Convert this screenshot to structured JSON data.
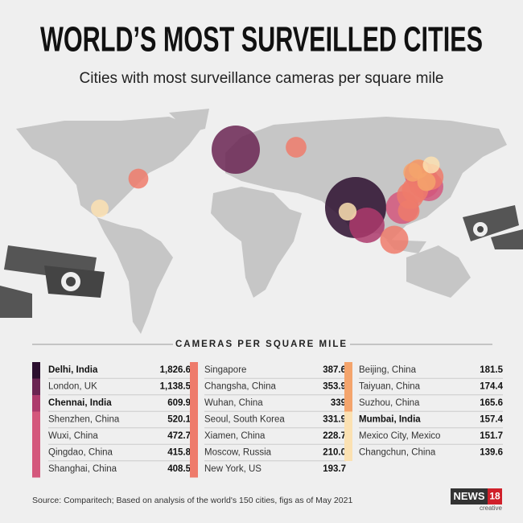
{
  "header": {
    "title": "WORLD’S MOST SURVEILLED CITIES",
    "subtitle": "Cities with most surveillance cameras per square mile"
  },
  "table": {
    "title": "CAMERAS PER SQUARE MILE",
    "columns": [
      {
        "rows": [
          {
            "city": "Delhi, India",
            "value": 1826.6,
            "label": "1,826.6",
            "color": "#2b0e2e",
            "bold": true
          },
          {
            "city": "London, UK",
            "value": 1138.5,
            "label": "1,138.5",
            "color": "#6a2452",
            "bold": false
          },
          {
            "city": "Chennai, India",
            "value": 609.9,
            "color": "#ad3a6c",
            "bold": true
          },
          {
            "city": "Shenzhen, China",
            "value": 520.1,
            "color": "#d4577c",
            "bold": false
          },
          {
            "city": "Wuxi, China",
            "value": 472.7,
            "color": "#d4577c",
            "bold": false
          },
          {
            "city": "Qingdao, China",
            "value": 415.8,
            "color": "#d4577c",
            "bold": false
          },
          {
            "city": "Shanghai, China",
            "value": 408.5,
            "color": "#d4577c",
            "bold": false
          }
        ]
      },
      {
        "rows": [
          {
            "city": "Singapore",
            "value": 387.6,
            "color": "#ee7b6b",
            "bold": false
          },
          {
            "city": "Changsha, China",
            "value": 353.9,
            "color": "#ee7b6b",
            "bold": false
          },
          {
            "city": "Wuhan, China",
            "value": 339,
            "color": "#ee7b6b",
            "bold": false
          },
          {
            "city": "Seoul, South Korea",
            "value": 331.9,
            "color": "#ee7b6b",
            "bold": false
          },
          {
            "city": "Xiamen, China",
            "value": 228.7,
            "color": "#ee7b6b",
            "bold": false
          },
          {
            "city": "Moscow, Russia",
            "value": 210,
            "label": "210.0",
            "color": "#ee7b6b",
            "bold": false
          },
          {
            "city": "New York, US",
            "value": 193.7,
            "color": "#ee7b6b",
            "bold": false
          }
        ]
      },
      {
        "rows": [
          {
            "city": "Beijing, China",
            "value": 181.5,
            "color": "#f4a46c",
            "bold": false
          },
          {
            "city": "Taiyuan, China",
            "value": 174.4,
            "color": "#f4a46c",
            "bold": false
          },
          {
            "city": "Suzhou, China",
            "value": 165.6,
            "color": "#f4a46c",
            "bold": false
          },
          {
            "city": "Mumbai, India",
            "value": 157.4,
            "color": "#fbe1b2",
            "bold": true
          },
          {
            "city": "Mexico City, Mexico",
            "value": 151.7,
            "color": "#fbe1b2",
            "bold": false
          },
          {
            "city": "Changchun, China",
            "value": 139.6,
            "color": "#fbe1b2",
            "bold": false
          }
        ]
      }
    ]
  },
  "footer": {
    "source": "Source: Comparitech; Based on analysis of the world's 150 cities, figs as of May 2021",
    "logo": "NEWS",
    "logo_number": "18",
    "logo_sub": "creative"
  }
}
